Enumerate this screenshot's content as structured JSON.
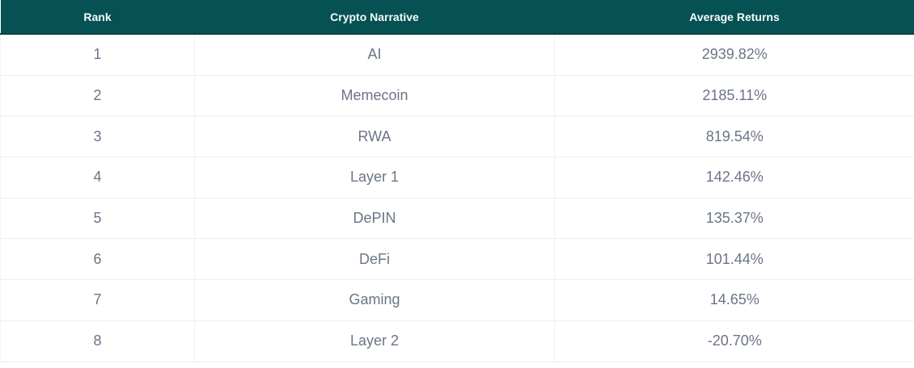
{
  "table": {
    "columns": [
      {
        "key": "rank",
        "label": "Rank"
      },
      {
        "key": "narrative",
        "label": "Crypto Narrative"
      },
      {
        "key": "returns",
        "label": "Average Returns"
      }
    ],
    "rows": [
      {
        "rank": "1",
        "narrative": "AI",
        "returns": "2939.82%"
      },
      {
        "rank": "2",
        "narrative": "Memecoin",
        "returns": "2185.11%"
      },
      {
        "rank": "3",
        "narrative": "RWA",
        "returns": "819.54%"
      },
      {
        "rank": "4",
        "narrative": "Layer 1",
        "returns": "142.46%"
      },
      {
        "rank": "5",
        "narrative": "DePIN",
        "returns": "135.37%"
      },
      {
        "rank": "6",
        "narrative": "DeFi",
        "returns": "101.44%"
      },
      {
        "rank": "7",
        "narrative": "Gaming",
        "returns": "14.65%"
      },
      {
        "rank": "8",
        "narrative": "Layer 2",
        "returns": "-20.70%"
      }
    ]
  },
  "colors": {
    "header_bg": "#055153",
    "header_border": "#033f44",
    "header_text": "#f7fafa",
    "cell_text": "#6b7488",
    "row_divider": "#eceef1",
    "column_divider": "#f0f2f5",
    "row_bg": "#ffffff"
  },
  "chart_data": {
    "type": "table",
    "title": "",
    "columns": [
      "Rank",
      "Crypto Narrative",
      "Average Returns"
    ],
    "categories": [
      "AI",
      "Memecoin",
      "RWA",
      "Layer 1",
      "DePIN",
      "DeFi",
      "Gaming",
      "Layer 2"
    ],
    "values": [
      2939.82,
      2185.11,
      819.54,
      142.46,
      135.37,
      101.44,
      14.65,
      -20.7
    ],
    "value_unit": "%"
  }
}
